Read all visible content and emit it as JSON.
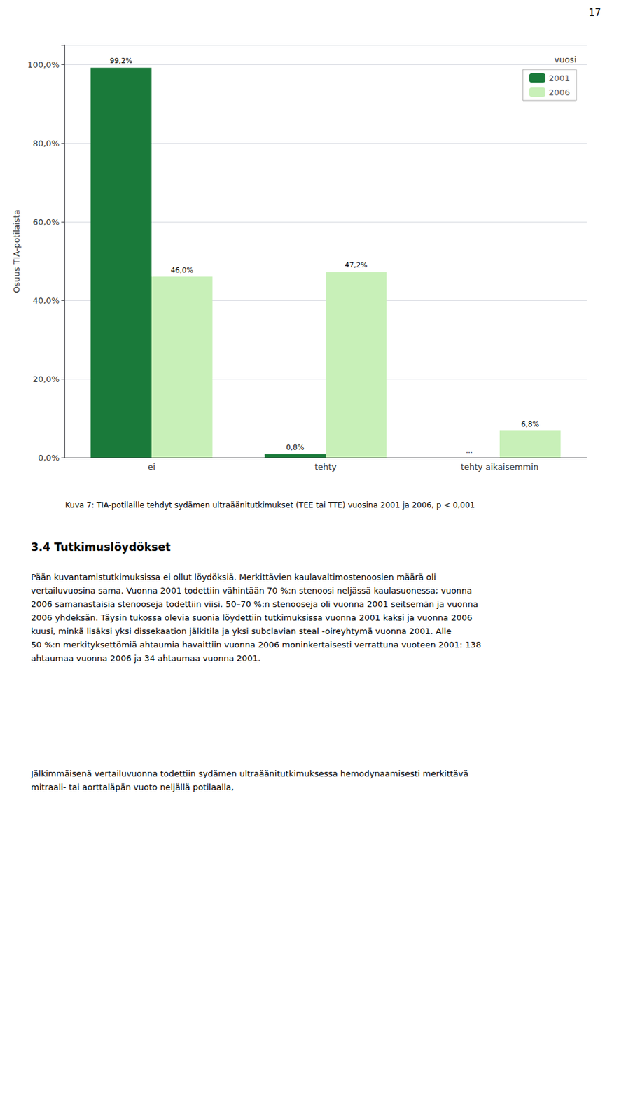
{
  "chart_data": {
    "type": "bar",
    "title": "Kuva 7: TIA-potilaille tehdyt sydämen ultraäänitutkimukset (TEE tai TTE) vuosina 2001 ja 2006, p < 0,001",
    "ylabel": "Osuus TIA-potilaista",
    "categories": [
      "ei",
      "tehty",
      "tehty aikaisemmin"
    ],
    "series": [
      {
        "name": "2001",
        "color": "#1a7a3a",
        "values": [
          99.2,
          0.8,
          0.0
        ],
        "value_labels": [
          "99,2%",
          "0,8%",
          "..."
        ]
      },
      {
        "name": "2006",
        "color": "#c8f0b8",
        "values": [
          46.0,
          47.2,
          6.8
        ],
        "value_labels": [
          "46,0%",
          "47,2%",
          "6,8%"
        ]
      }
    ],
    "ylim": [
      0,
      105
    ],
    "yticks": [
      {
        "value": 0,
        "label": "0,0%"
      },
      {
        "value": 20,
        "label": "20,0%"
      },
      {
        "value": 40,
        "label": "40,0%"
      },
      {
        "value": 60,
        "label": "60,0%"
      },
      {
        "value": 80,
        "label": "80,0%"
      },
      {
        "value": 100,
        "label": "100,0%"
      }
    ],
    "grid": true,
    "legend": "upper right",
    "legend_title": "vuosi",
    "data_labels": true,
    "annotations": [
      "17",
      "3.4 Tutkimuslöydökset",
      "Pään kuvantamistutkimuksissa ei ollut löydöksiä. Merkittävien kaulavaltimostenoosien määrä oli vertailuvuosina sama. Vuonna 2001 todettiin vähintään 70 %:n stenoosi neljässä kaulasuonessa; vuonna 2006 samanastaisia stenooseja todettiin viisi. 50–70 %:n stenooseja oli vuonna 2001 seitsemän ja vuonna 2006 yhdeksän. Täysin tukossa olevia suonia löydettiin tutkimuksissa vuonna 2001 kaksi ja vuonna 2006 kuusi, minkä lisäksi yksi dissekaation jälkitila ja yksi subclavian steal -oireyhtymä vuonna 2001. Alle 50 %:n merkityksettömiä ahtaumia havaittiin vuonna 2006 moninkertaisesti verrattuna vuoteen 2001: 138 ahtaumaa vuonna 2006 ja 34 ahtaumaa vuonna 2001.",
      "Jälkimmäisenä vertailuvuonna todettiin sydämen ultraäänitutkimuksessa hemodynaamisesti merkittävä mitraali- tai aorttaläpän vuoto neljällä potilaalla,"
    ]
  }
}
